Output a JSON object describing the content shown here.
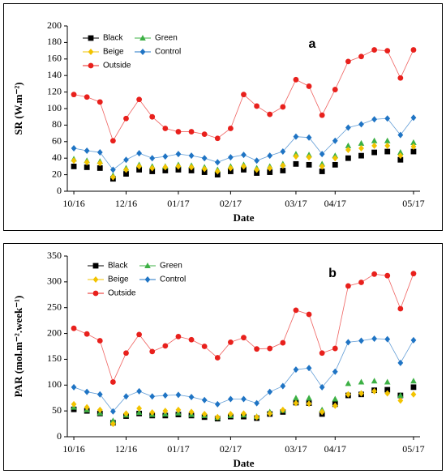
{
  "chart_data": [
    {
      "type": "line",
      "annotation": "a",
      "x_label": "Date",
      "y_label": "SR (W.m⁻²)",
      "categories": [
        "10/16",
        null,
        null,
        null,
        "12/16",
        null,
        null,
        null,
        "01/17",
        null,
        null,
        null,
        "02/17",
        null,
        null,
        null,
        null,
        "03/17",
        null,
        null,
        "04/17",
        null,
        null,
        null,
        null,
        null,
        "05/17"
      ],
      "ylim": [
        0,
        200
      ],
      "yticks": [
        0,
        20,
        40,
        60,
        80,
        100,
        120,
        140,
        160,
        180,
        200
      ],
      "series": [
        {
          "name": "Black",
          "color": "#000000",
          "marker": "square",
          "line": false,
          "values": [
            30,
            29,
            28,
            15,
            21,
            26,
            24,
            25,
            26,
            25,
            23,
            20,
            24,
            26,
            22,
            23,
            25,
            33,
            32,
            24,
            32,
            40,
            43,
            47,
            48,
            38,
            48
          ]
        },
        {
          "name": "Green",
          "color": "#3cb044",
          "marker": "triangle",
          "line": false,
          "values": [
            39,
            37,
            36,
            19,
            28,
            32,
            30,
            30,
            32,
            31,
            29,
            26,
            30,
            32,
            28,
            30,
            33,
            45,
            44,
            33,
            43,
            55,
            58,
            61,
            61,
            47,
            59
          ]
        },
        {
          "name": "Beige",
          "color": "#f2c300",
          "marker": "diamond",
          "line": false,
          "values": [
            37,
            35,
            34,
            17,
            26,
            30,
            28,
            29,
            30,
            29,
            27,
            24,
            28,
            30,
            26,
            28,
            31,
            42,
            41,
            30,
            40,
            50,
            52,
            55,
            55,
            43,
            54
          ]
        },
        {
          "name": "Control",
          "color": "#1f74c4",
          "marker": "diamond",
          "line": true,
          "values": [
            52,
            49,
            47,
            26,
            38,
            46,
            40,
            42,
            45,
            43,
            40,
            35,
            41,
            44,
            37,
            43,
            48,
            66,
            65,
            45,
            61,
            77,
            81,
            87,
            88,
            68,
            89
          ]
        },
        {
          "name": "Outside",
          "color": "#e8201c",
          "marker": "circle",
          "line": true,
          "values": [
            117,
            114,
            108,
            61,
            88,
            111,
            90,
            76,
            72,
            72,
            69,
            64,
            76,
            117,
            103,
            93,
            102,
            135,
            127,
            92,
            123,
            157,
            163,
            171,
            170,
            137,
            171
          ]
        }
      ]
    },
    {
      "type": "line",
      "annotation": "b",
      "x_label": "Date",
      "y_label": "PAR (mol.m⁻².week⁻¹)",
      "categories": [
        "10/16",
        null,
        null,
        null,
        "12/16",
        null,
        null,
        null,
        "01/17",
        null,
        null,
        null,
        "02/17",
        null,
        null,
        null,
        null,
        "03/17",
        null,
        null,
        "04/17",
        null,
        null,
        null,
        null,
        null,
        "05/17"
      ],
      "ylim": [
        0,
        350
      ],
      "yticks": [
        0,
        50,
        100,
        150,
        200,
        250,
        300,
        350
      ],
      "series": [
        {
          "name": "Black",
          "color": "#000000",
          "marker": "square",
          "line": false,
          "values": [
            53,
            50,
            45,
            27,
            40,
            45,
            41,
            41,
            43,
            41,
            38,
            35,
            39,
            39,
            36,
            44,
            48,
            66,
            65,
            44,
            63,
            80,
            82,
            90,
            91,
            80,
            96
          ]
        },
        {
          "name": "Green",
          "color": "#3cb044",
          "marker": "triangle",
          "line": false,
          "values": [
            57,
            52,
            46,
            31,
            42,
            47,
            43,
            44,
            46,
            43,
            41,
            37,
            41,
            42,
            39,
            48,
            51,
            75,
            75,
            52,
            73,
            103,
            106,
            108,
            106,
            80,
            108
          ]
        },
        {
          "name": "Beige",
          "color": "#f2c300",
          "marker": "diamond",
          "line": false,
          "values": [
            63,
            57,
            52,
            25,
            45,
            55,
            47,
            50,
            52,
            48,
            44,
            38,
            44,
            45,
            38,
            45,
            52,
            65,
            64,
            48,
            60,
            82,
            84,
            88,
            84,
            70,
            82
          ]
        },
        {
          "name": "Control",
          "color": "#1f74c4",
          "marker": "diamond",
          "line": true,
          "values": [
            96,
            87,
            82,
            49,
            78,
            88,
            78,
            80,
            81,
            77,
            71,
            63,
            73,
            73,
            65,
            87,
            98,
            130,
            133,
            96,
            126,
            183,
            186,
            190,
            189,
            143,
            187
          ]
        },
        {
          "name": "Outside",
          "color": "#e8201c",
          "marker": "circle",
          "line": true,
          "values": [
            210,
            199,
            186,
            106,
            162,
            198,
            165,
            176,
            194,
            188,
            175,
            153,
            183,
            192,
            170,
            171,
            182,
            245,
            237,
            162,
            171,
            292,
            299,
            315,
            312,
            248,
            316
          ]
        }
      ]
    }
  ]
}
